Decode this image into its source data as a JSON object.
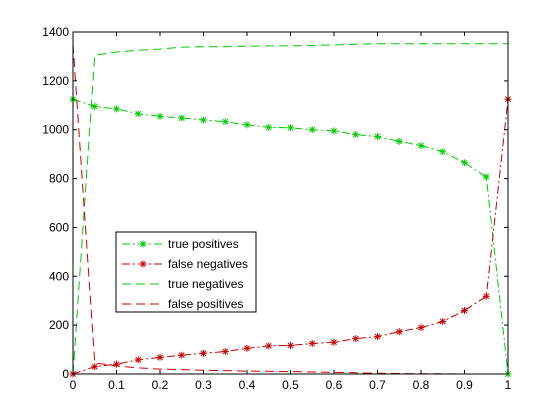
{
  "chart_data": {
    "type": "line",
    "title": "",
    "xlabel": "",
    "ylabel": "",
    "xlim": [
      0,
      1
    ],
    "ylim": [
      0,
      1400
    ],
    "xticks": [
      0,
      0.1,
      0.2,
      0.3,
      0.4,
      0.5,
      0.6,
      0.7,
      0.8,
      0.9,
      1
    ],
    "xtick_labels": [
      "0",
      "0.1",
      "0.2",
      "0.3",
      "0.4",
      "0.5",
      "0.6",
      "0.7",
      "0.8",
      "0.9",
      "1"
    ],
    "yticks": [
      0,
      200,
      400,
      600,
      800,
      1000,
      1200,
      1400
    ],
    "ytick_labels": [
      "0",
      "200",
      "400",
      "600",
      "800",
      "1000",
      "1200",
      "1400"
    ],
    "grid": false,
    "legend_placement": "lower-left",
    "x": [
      0,
      0.05,
      0.1,
      0.15,
      0.2,
      0.25,
      0.3,
      0.35,
      0.4,
      0.45,
      0.5,
      0.55,
      0.6,
      0.65,
      0.7,
      0.75,
      0.8,
      0.85,
      0.9,
      0.95,
      1
    ],
    "series": [
      {
        "name": "true positives",
        "color": "#00cc00",
        "dash": "dashdot",
        "marker": "star",
        "values": [
          1125,
          1095,
          1085,
          1065,
          1055,
          1048,
          1040,
          1033,
          1020,
          1010,
          1008,
          1000,
          995,
          980,
          972,
          952,
          935,
          910,
          865,
          807,
          0
        ]
      },
      {
        "name": "false negatives",
        "color": "#cc0000",
        "dash": "dashdot",
        "marker": "star",
        "values": [
          0,
          30,
          40,
          58,
          68,
          77,
          85,
          92,
          105,
          115,
          117,
          125,
          130,
          145,
          153,
          173,
          190,
          215,
          260,
          318,
          1125
        ]
      },
      {
        "name": "true negatives",
        "color": "#00cc00",
        "dash": "dashed",
        "marker": "none",
        "values": [
          0,
          1305,
          1318,
          1325,
          1330,
          1338,
          1340,
          1340,
          1342,
          1343,
          1343,
          1345,
          1347,
          1350,
          1352,
          1352,
          1352,
          1352,
          1352,
          1352,
          1352
        ]
      },
      {
        "name": "false positives",
        "color": "#cc0000",
        "dash": "dashed",
        "marker": "none",
        "values": [
          1350,
          45,
          33,
          25,
          20,
          18,
          15,
          14,
          12,
          11,
          10,
          8,
          7,
          5,
          3,
          2,
          1,
          1,
          0,
          0,
          0
        ]
      }
    ]
  }
}
